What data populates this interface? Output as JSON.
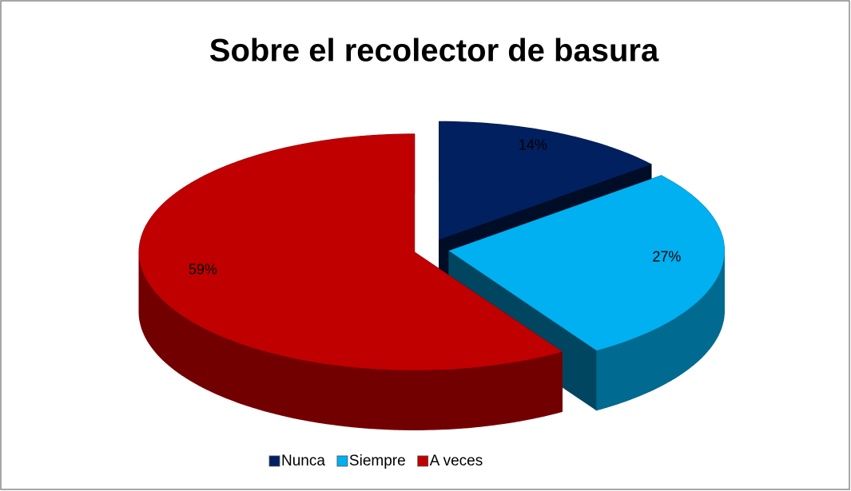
{
  "chart_data": {
    "type": "pie",
    "title": "Sobre el recolector de basura",
    "categories": [
      "Nunca",
      "Siempre",
      "A veces"
    ],
    "values": [
      14,
      27,
      59
    ],
    "value_labels": [
      "14%",
      "27%",
      "59%"
    ],
    "colors": [
      "#002060",
      "#00b0f0",
      "#c00000"
    ],
    "legend": "bottom"
  }
}
